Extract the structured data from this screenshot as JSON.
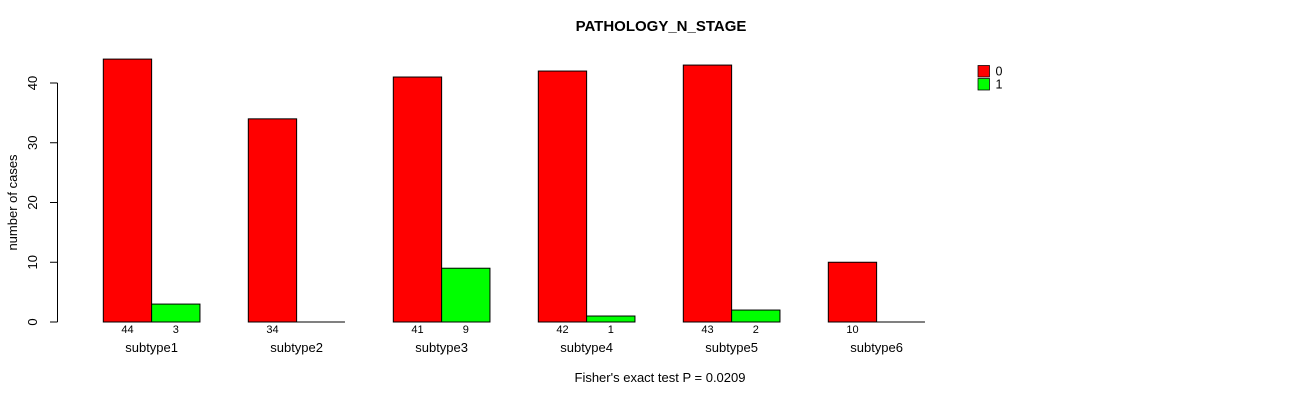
{
  "chart_data": {
    "type": "bar",
    "title": "PATHOLOGY_N_STAGE",
    "ylabel": "number of cases",
    "xlabel": "",
    "caption": "Fisher's exact test P = 0.0209",
    "categories": [
      "subtype1",
      "subtype2",
      "subtype3",
      "subtype4",
      "subtype5",
      "subtype6"
    ],
    "series": [
      {
        "name": "0",
        "color": "#ff0000",
        "values": [
          44,
          34,
          41,
          42,
          43,
          10
        ],
        "bar_labels": [
          "44",
          "34",
          "41",
          "42",
          "43",
          "10"
        ]
      },
      {
        "name": "1",
        "color": "#00ff00",
        "values": [
          3,
          0,
          9,
          1,
          2,
          0
        ],
        "bar_labels": [
          "3",
          "",
          "9",
          "1",
          "2",
          ""
        ]
      }
    ],
    "yticks": [
      0,
      10,
      20,
      30,
      40
    ],
    "ylim": [
      0,
      44
    ],
    "grid": false,
    "legend_position": "topright",
    "legend_entries": [
      "0",
      "1"
    ],
    "bar_border_color": "#000000",
    "axis_color": "#000000",
    "text_color": "#000000",
    "background": "#ffffff"
  }
}
